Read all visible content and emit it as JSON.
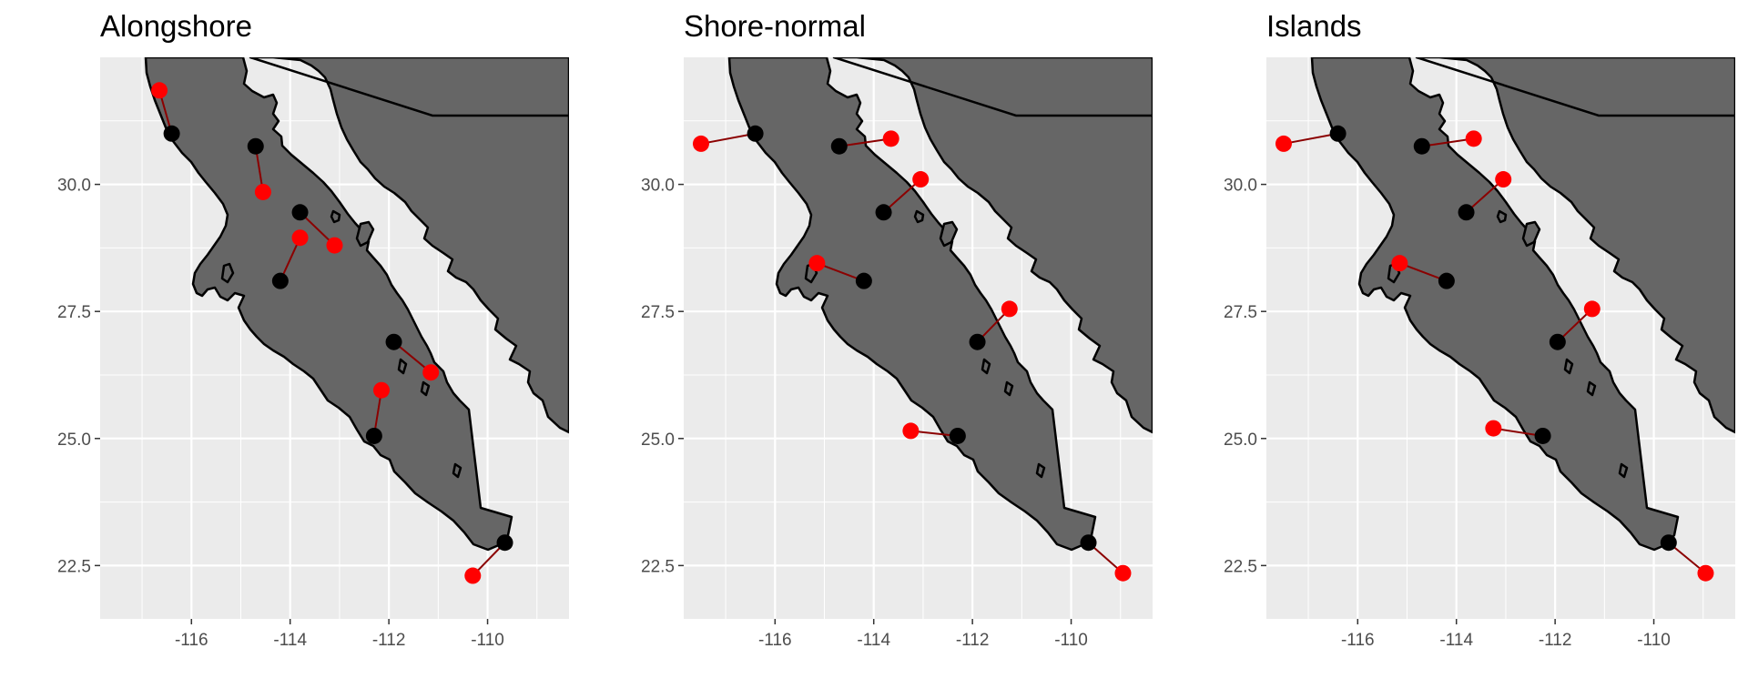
{
  "colors": {
    "panel_background": "#EBEBEB",
    "grid_major": "#FFFFFF",
    "land_fill": "#666666",
    "land_stroke": "#000000",
    "origin_point": "#000000",
    "shifted_point": "#FF0000",
    "connector": "#8B0000",
    "tick_text": "#4D4D4D"
  },
  "chart_data": [
    {
      "type": "scatter",
      "title": "Alongshore",
      "xlabel": "",
      "ylabel": "",
      "xlim": [
        -117.85,
        -108.35
      ],
      "ylim": [
        21.45,
        32.5
      ],
      "x_ticks": [
        -116,
        -114,
        -112,
        -110
      ],
      "x_tick_labels": [
        "-116",
        "-114",
        "-112",
        "-110"
      ],
      "y_ticks": [
        22.5,
        25.0,
        27.5,
        30.0
      ],
      "y_tick_labels": [
        "22.5",
        "25.0",
        "27.5",
        "30.0"
      ],
      "grid": true,
      "origins": [
        {
          "x": -116.4,
          "y": 31.0
        },
        {
          "x": -114.7,
          "y": 30.75
        },
        {
          "x": -113.8,
          "y": 29.45
        },
        {
          "x": -114.2,
          "y": 28.1
        },
        {
          "x": -111.9,
          "y": 26.9
        },
        {
          "x": -112.3,
          "y": 25.05
        },
        {
          "x": -109.65,
          "y": 22.95
        }
      ],
      "shifted": [
        {
          "x": -116.65,
          "y": 31.85
        },
        {
          "x": -114.55,
          "y": 29.85
        },
        {
          "x": -113.1,
          "y": 28.8
        },
        {
          "x": -113.8,
          "y": 28.95
        },
        {
          "x": -111.15,
          "y": 26.3
        },
        {
          "x": -112.15,
          "y": 25.95
        },
        {
          "x": -110.3,
          "y": 22.3
        }
      ]
    },
    {
      "type": "scatter",
      "title": "Shore-normal",
      "xlabel": "",
      "ylabel": "",
      "xlim": [
        -117.85,
        -108.35
      ],
      "ylim": [
        21.45,
        32.5
      ],
      "x_ticks": [
        -116,
        -114,
        -112,
        -110
      ],
      "x_tick_labels": [
        "-116",
        "-114",
        "-112",
        "-110"
      ],
      "y_ticks": [
        22.5,
        25.0,
        27.5,
        30.0
      ],
      "y_tick_labels": [
        "22.5",
        "25.0",
        "27.5",
        "30.0"
      ],
      "grid": true,
      "origins": [
        {
          "x": -116.4,
          "y": 31.0
        },
        {
          "x": -114.7,
          "y": 30.75
        },
        {
          "x": -113.8,
          "y": 29.45
        },
        {
          "x": -114.2,
          "y": 28.1
        },
        {
          "x": -111.9,
          "y": 26.9
        },
        {
          "x": -112.3,
          "y": 25.05
        },
        {
          "x": -109.65,
          "y": 22.95
        }
      ],
      "shifted": [
        {
          "x": -117.5,
          "y": 30.8
        },
        {
          "x": -113.65,
          "y": 30.9
        },
        {
          "x": -113.05,
          "y": 30.1
        },
        {
          "x": -115.15,
          "y": 28.45
        },
        {
          "x": -111.25,
          "y": 27.55
        },
        {
          "x": -113.25,
          "y": 25.15
        },
        {
          "x": -108.95,
          "y": 22.35
        }
      ]
    },
    {
      "type": "scatter",
      "title": "Islands",
      "xlabel": "",
      "ylabel": "",
      "xlim": [
        -117.85,
        -108.35
      ],
      "ylim": [
        21.45,
        32.5
      ],
      "x_ticks": [
        -116,
        -114,
        -112,
        -110
      ],
      "x_tick_labels": [
        "-116",
        "-114",
        "-112",
        "-110"
      ],
      "y_ticks": [
        22.5,
        25.0,
        27.5,
        30.0
      ],
      "y_tick_labels": [
        "22.5",
        "25.0",
        "27.5",
        "30.0"
      ],
      "grid": true,
      "origins": [
        {
          "x": -116.4,
          "y": 31.0
        },
        {
          "x": -114.7,
          "y": 30.75
        },
        {
          "x": -113.8,
          "y": 29.45
        },
        {
          "x": -114.2,
          "y": 28.1
        },
        {
          "x": -111.95,
          "y": 26.9
        },
        {
          "x": -112.25,
          "y": 25.05
        },
        {
          "x": -109.7,
          "y": 22.95
        }
      ],
      "shifted": [
        {
          "x": -117.5,
          "y": 30.8
        },
        {
          "x": -113.65,
          "y": 30.9
        },
        {
          "x": -113.05,
          "y": 30.1
        },
        {
          "x": -115.15,
          "y": 28.45
        },
        {
          "x": -111.25,
          "y": 27.55
        },
        {
          "x": -113.25,
          "y": 25.2
        },
        {
          "x": -108.95,
          "y": 22.35
        }
      ]
    }
  ]
}
